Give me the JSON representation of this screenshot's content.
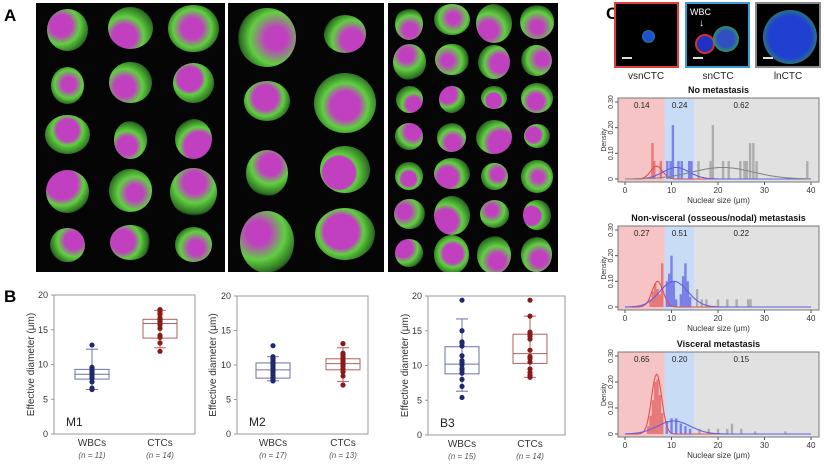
{
  "panels": {
    "a": "A",
    "b": "B",
    "c": "C"
  },
  "panel_c_images": [
    {
      "label": "vsnCTC",
      "border": "#e0403a"
    },
    {
      "label": "snCTC",
      "border": "#3a9ad8",
      "annotation": "WBC"
    },
    {
      "label": "lnCTC",
      "border": "#8a8a8a"
    }
  ],
  "chart_data": [
    {
      "type": "box",
      "tag": "M1",
      "ylabel": "Effective diameter (μm)",
      "ylim": [
        0,
        20
      ],
      "yticks": [
        0,
        5,
        10,
        15,
        20
      ],
      "groups": [
        {
          "name": "WBCs",
          "n": "(n = 11)",
          "color": "#1f2a6e",
          "q1": 7.9,
          "median": 8.6,
          "q3": 9.3,
          "whisker": [
            6.4,
            12.2
          ],
          "points": [
            6.4,
            6.6,
            7.5,
            8.0,
            8.3,
            8.6,
            8.9,
            9.1,
            9.4,
            9.6,
            12.8
          ]
        },
        {
          "name": "CTCs",
          "n": "(n = 14)",
          "color": "#8a1a1a",
          "q1": 13.8,
          "median": 15.9,
          "q3": 16.5,
          "whisker": [
            12.4,
            17.8
          ],
          "points": [
            11.9,
            13.1,
            13.9,
            14.2,
            15.2,
            15.7,
            16.0,
            16.3,
            16.5,
            16.7,
            17.2,
            17.5,
            17.7,
            17.9
          ]
        }
      ]
    },
    {
      "type": "box",
      "tag": "M2",
      "ylabel": "Effective diameter (μm)",
      "ylim": [
        0,
        20
      ],
      "yticks": [
        0,
        5,
        10,
        15,
        20
      ],
      "groups": [
        {
          "name": "WBCs",
          "n": "(n = 17)",
          "color": "#1f2a6e",
          "q1": 8.1,
          "median": 9.3,
          "q3": 10.3,
          "whisker": [
            7.7,
            11.2
          ],
          "points": [
            7.7,
            7.9,
            8.2,
            8.5,
            8.8,
            9.1,
            9.3,
            9.5,
            9.8,
            10.0,
            10.2,
            10.4,
            10.7,
            10.9,
            11.0,
            11.2,
            12.8
          ]
        },
        {
          "name": "CTCs",
          "n": "(n = 13)",
          "color": "#8a1a1a",
          "q1": 9.3,
          "median": 10.2,
          "q3": 10.9,
          "whisker": [
            7.6,
            12.5
          ],
          "points": [
            7.1,
            8.4,
            9.0,
            9.4,
            9.8,
            10.1,
            10.3,
            10.6,
            10.9,
            11.2,
            11.5,
            11.7,
            13.1
          ]
        }
      ]
    },
    {
      "type": "box",
      "tag": "B3",
      "ylabel": "Effective diameter (μm)",
      "ylim": [
        0,
        20
      ],
      "yticks": [
        0,
        5,
        10,
        15,
        20
      ],
      "groups": [
        {
          "name": "WBCs",
          "n": "(n = 15)",
          "color": "#1f2a6e",
          "q1": 8.8,
          "median": 10.2,
          "q3": 12.7,
          "whisker": [
            6.3,
            16.7
          ],
          "points": [
            5.4,
            7.0,
            8.0,
            8.9,
            9.3,
            9.6,
            10.1,
            10.4,
            10.7,
            11.4,
            12.8,
            13.2,
            13.4,
            15.0,
            19.4
          ]
        },
        {
          "name": "CTCs",
          "n": "(n = 14)",
          "color": "#8a1a1a",
          "q1": 10.3,
          "median": 11.7,
          "q3": 14.5,
          "whisker": [
            8.3,
            17.1
          ],
          "points": [
            8.3,
            8.6,
            9.5,
            10.5,
            11.0,
            11.3,
            12.2,
            13.8,
            14.2,
            14.5,
            14.8,
            17.1,
            19.4,
            9.0
          ]
        }
      ]
    },
    {
      "type": "histogram",
      "title": "No metastasis",
      "xlabel": "Nuclear size (μm)",
      "ylabel": "Density",
      "xlim": [
        0,
        40
      ],
      "ylim": [
        0,
        0.3
      ],
      "xticks": [
        0,
        10,
        20,
        30,
        40
      ],
      "yticks": [
        "0",
        "0.10",
        "0.20",
        "0.30"
      ],
      "regions": [
        {
          "range": [
            0,
            8.5
          ],
          "color": "#f6c4c4",
          "fraction": "0.14"
        },
        {
          "range": [
            8.5,
            15
          ],
          "color": "#c8dcf5",
          "fraction": "0.24"
        },
        {
          "range": [
            15,
            42
          ],
          "color": "#e1e1e1",
          "fraction": "0.62"
        }
      ],
      "bars": [
        [
          5.9,
          0.14,
          "r"
        ],
        [
          6.3,
          0.07,
          "r"
        ],
        [
          7.7,
          0.07,
          "r"
        ],
        [
          9.1,
          0.07,
          "b"
        ],
        [
          9.8,
          0.07,
          "b"
        ],
        [
          10.3,
          0.21,
          "b"
        ],
        [
          11.5,
          0.07,
          "b"
        ],
        [
          12.2,
          0.07,
          "b"
        ],
        [
          13.8,
          0.07,
          "b"
        ],
        [
          14.3,
          0.07,
          "b"
        ],
        [
          15.8,
          0.07,
          "g"
        ],
        [
          18.4,
          0.07,
          "g"
        ],
        [
          18.9,
          0.21,
          "g"
        ],
        [
          21.1,
          0.07,
          "g"
        ],
        [
          22.3,
          0.07,
          "g"
        ],
        [
          24.8,
          0.07,
          "g"
        ],
        [
          25.7,
          0.07,
          "g"
        ],
        [
          26.2,
          0.07,
          "g"
        ],
        [
          26.9,
          0.14,
          "g"
        ],
        [
          27.6,
          0.14,
          "g"
        ],
        [
          28.3,
          0.07,
          "g"
        ],
        [
          39.2,
          0.07,
          "g"
        ]
      ],
      "curves": [
        {
          "mean": 6.8,
          "sd": 1.3,
          "peak": 0.05,
          "color": "#e05050"
        },
        {
          "mean": 11,
          "sd": 2.8,
          "peak": 0.045,
          "color": "#6060e0"
        },
        {
          "mean": 21,
          "sd": 6.5,
          "peak": 0.045,
          "color": "#888888"
        }
      ]
    },
    {
      "type": "histogram",
      "title": "Non-visceral (osseous/nodal) metastasis",
      "xlabel": "Nuclear size (μm)",
      "ylabel": "Density",
      "xlim": [
        0,
        40
      ],
      "ylim": [
        0,
        0.3
      ],
      "xticks": [
        0,
        10,
        20,
        30,
        40
      ],
      "yticks": [
        "0",
        "0.10",
        "0.20",
        "0.30"
      ],
      "regions": [
        {
          "range": [
            0,
            8.5
          ],
          "color": "#f6c4c4",
          "fraction": "0.27"
        },
        {
          "range": [
            8.5,
            15
          ],
          "color": "#c8dcf5",
          "fraction": "0.51"
        },
        {
          "range": [
            15,
            42
          ],
          "color": "#e1e1e1",
          "fraction": "0.22"
        }
      ],
      "bars": [
        [
          5.5,
          0.03,
          "r"
        ],
        [
          6.0,
          0.06,
          "r"
        ],
        [
          6.5,
          0.09,
          "r"
        ],
        [
          7.0,
          0.07,
          "r"
        ],
        [
          7.5,
          0.05,
          "r"
        ],
        [
          8.0,
          0.17,
          "r"
        ],
        [
          9.0,
          0.1,
          "b"
        ],
        [
          9.5,
          0.13,
          "b"
        ],
        [
          10.0,
          0.2,
          "b"
        ],
        [
          10.5,
          0.1,
          "b"
        ],
        [
          11.0,
          0.03,
          "b"
        ],
        [
          12.0,
          0.05,
          "b"
        ],
        [
          12.5,
          0.12,
          "b"
        ],
        [
          13.0,
          0.17,
          "b"
        ],
        [
          13.5,
          0.1,
          "b"
        ],
        [
          14.0,
          0.04,
          "b"
        ],
        [
          15.5,
          0.07,
          "g"
        ],
        [
          16.5,
          0.03,
          "g"
        ],
        [
          17.5,
          0.03,
          "g"
        ],
        [
          20,
          0.03,
          "g"
        ],
        [
          22,
          0.03,
          "g"
        ],
        [
          24,
          0.03,
          "g"
        ],
        [
          26.5,
          0.03,
          "g"
        ],
        [
          27,
          0.03,
          "g"
        ]
      ],
      "curves": [
        {
          "mean": 7,
          "sd": 1.2,
          "peak": 0.1,
          "color": "#e05050"
        },
        {
          "mean": 10.5,
          "sd": 3,
          "peak": 0.1,
          "color": "#6060e0"
        }
      ]
    },
    {
      "type": "histogram",
      "title": "Visceral metastasis",
      "xlabel": "Nuclear size (μm)",
      "ylabel": "Density",
      "xlim": [
        0,
        40
      ],
      "ylim": [
        0,
        0.3
      ],
      "xticks": [
        0,
        10,
        20,
        30,
        40
      ],
      "yticks": [
        "0",
        "0.10",
        "0.20",
        "0.30"
      ],
      "regions": [
        {
          "range": [
            0,
            8.5
          ],
          "color": "#f6c4c4",
          "fraction": "0.65"
        },
        {
          "range": [
            8.5,
            15
          ],
          "color": "#c8dcf5",
          "fraction": "0.20"
        },
        {
          "range": [
            15,
            42
          ],
          "color": "#e1e1e1",
          "fraction": "0.15"
        }
      ],
      "bars": [
        [
          5,
          0.03,
          "r"
        ],
        [
          5.5,
          0.07,
          "r"
        ],
        [
          6,
          0.13,
          "r"
        ],
        [
          6.5,
          0.2,
          "r"
        ],
        [
          7,
          0.21,
          "r"
        ],
        [
          7.5,
          0.15,
          "r"
        ],
        [
          8,
          0.08,
          "r"
        ],
        [
          9,
          0.05,
          "b"
        ],
        [
          10,
          0.06,
          "b"
        ],
        [
          11,
          0.06,
          "b"
        ],
        [
          12,
          0.04,
          "b"
        ],
        [
          13,
          0.03,
          "b"
        ],
        [
          14,
          0.02,
          "b"
        ],
        [
          16,
          0.02,
          "g"
        ],
        [
          18,
          0.02,
          "g"
        ],
        [
          20,
          0.02,
          "g"
        ],
        [
          22,
          0.02,
          "g"
        ],
        [
          23,
          0.04,
          "g"
        ],
        [
          25,
          0.02,
          "g"
        ],
        [
          28,
          0.01,
          "g"
        ],
        [
          34.5,
          0.01,
          "g"
        ]
      ],
      "curves": [
        {
          "mean": 6.8,
          "sd": 1.1,
          "peak": 0.23,
          "color": "#e05050"
        },
        {
          "mean": 10.5,
          "sd": 3.5,
          "peak": 0.05,
          "color": "#6060e0"
        }
      ]
    }
  ]
}
